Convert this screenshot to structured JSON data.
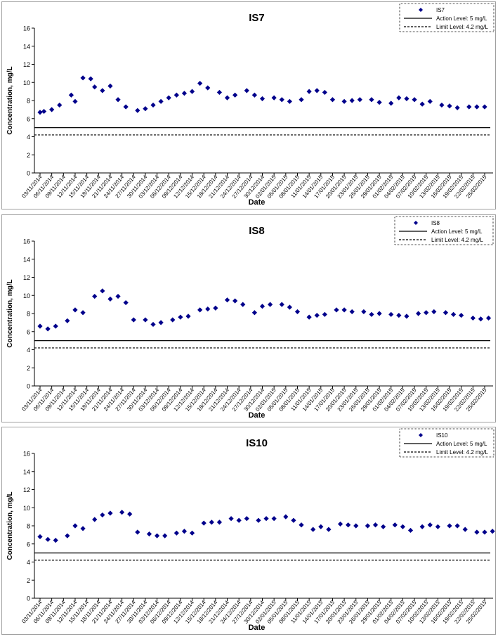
{
  "dates": [
    "03/11/2014",
    "06/11/2014",
    "09/11/2014",
    "12/11/2014",
    "15/11/2014",
    "18/11/2014",
    "21/11/2014",
    "24/11/2014",
    "27/11/2014",
    "30/11/2014",
    "03/12/2014",
    "06/12/2014",
    "09/12/2014",
    "12/12/2014",
    "15/12/2014",
    "18/12/2014",
    "21/12/2014",
    "24/12/2014",
    "27/12/2014",
    "30/12/2014",
    "02/01/2015",
    "05/01/2015",
    "08/01/2015",
    "11/01/2015",
    "14/01/2015",
    "17/01/2015",
    "20/01/2015",
    "23/01/2015",
    "26/01/2015",
    "29/01/2015",
    "01/02/2015",
    "04/02/2015",
    "07/02/2015",
    "10/02/2015",
    "13/02/2015",
    "16/02/2015",
    "19/02/2015",
    "22/02/2015",
    "25/02/2015"
  ],
  "colors": {
    "marker": "#00008B",
    "line": "#000000",
    "frame": "#a0a0a0"
  },
  "chart_data": [
    {
      "type": "scatter",
      "title": "IS7",
      "xlabel": "Date",
      "ylabel": "Concentration, mg/L",
      "ylim": [
        0,
        16
      ],
      "yticks": [
        0,
        2,
        4,
        6,
        8,
        10,
        12,
        14,
        16
      ],
      "legend_position": "top-right",
      "series": [
        {
          "name": "IS7",
          "x": [
            "03/11/2014",
            "04/11/2014",
            "06/11/2014",
            "08/11/2014",
            "11/11/2014",
            "12/11/2014",
            "14/11/2014",
            "16/11/2014",
            "17/11/2014",
            "19/11/2014",
            "21/11/2014",
            "23/11/2014",
            "25/11/2014",
            "28/11/2014",
            "30/11/2014",
            "02/12/2014",
            "04/12/2014",
            "06/12/2014",
            "08/12/2014",
            "10/12/2014",
            "12/12/2014",
            "14/12/2014",
            "16/12/2014",
            "19/12/2014",
            "21/12/2014",
            "23/12/2014",
            "26/12/2014",
            "28/12/2014",
            "30/12/2014",
            "02/01/2015",
            "04/01/2015",
            "06/01/2015",
            "09/01/2015",
            "11/01/2015",
            "13/01/2015",
            "15/01/2015",
            "17/01/2015",
            "20/01/2015",
            "22/01/2015",
            "24/01/2015",
            "27/01/2015",
            "29/01/2015",
            "01/02/2015",
            "03/02/2015",
            "05/02/2015",
            "07/02/2015",
            "09/02/2015",
            "11/02/2015",
            "14/02/2015",
            "16/02/2015",
            "18/02/2015",
            "21/02/2015",
            "23/02/2015",
            "25/02/2015"
          ],
          "y": [
            6.7,
            6.8,
            7.0,
            7.5,
            8.6,
            7.9,
            10.5,
            10.4,
            9.5,
            9.1,
            9.6,
            8.1,
            7.3,
            6.9,
            7.1,
            7.5,
            7.9,
            8.3,
            8.6,
            8.8,
            9.0,
            9.9,
            9.4,
            8.9,
            8.3,
            8.6,
            9.1,
            8.6,
            8.2,
            8.3,
            8.1,
            7.9,
            8.1,
            9.0,
            9.1,
            8.9,
            8.1,
            7.9,
            8.0,
            8.1,
            8.1,
            7.8,
            7.7,
            8.3,
            8.2,
            8.1,
            7.6,
            7.9,
            7.5,
            7.4,
            7.2,
            7.3,
            7.3,
            7.3
          ]
        },
        {
          "name": "Action Level: 5 mg/L",
          "value": 5
        },
        {
          "name": "Limit Level: 4.2 mg/L",
          "value": 4.2
        }
      ]
    },
    {
      "type": "scatter",
      "title": "IS8",
      "xlabel": "Date",
      "ylabel": "Concentration, mg/L",
      "ylim": [
        0,
        16
      ],
      "yticks": [
        0,
        2,
        4,
        6,
        8,
        10,
        12,
        14,
        16
      ],
      "legend_position": "top-right",
      "series": [
        {
          "name": "IS8",
          "x": [
            "03/11/2014",
            "05/11/2014",
            "07/11/2014",
            "10/11/2014",
            "12/11/2014",
            "14/11/2014",
            "17/11/2014",
            "19/11/2014",
            "21/11/2014",
            "23/11/2014",
            "25/11/2014",
            "27/11/2014",
            "30/11/2014",
            "02/12/2014",
            "04/12/2014",
            "07/12/2014",
            "09/12/2014",
            "11/12/2014",
            "14/12/2014",
            "16/12/2014",
            "18/12/2014",
            "21/12/2014",
            "23/12/2014",
            "25/12/2014",
            "28/12/2014",
            "30/12/2014",
            "01/01/2015",
            "04/01/2015",
            "06/01/2015",
            "08/01/2015",
            "11/01/2015",
            "13/01/2015",
            "15/01/2015",
            "18/01/2015",
            "20/01/2015",
            "22/01/2015",
            "25/01/2015",
            "27/01/2015",
            "29/01/2015",
            "01/02/2015",
            "03/02/2015",
            "05/02/2015",
            "08/02/2015",
            "10/02/2015",
            "12/02/2015",
            "15/02/2015",
            "17/02/2015",
            "19/02/2015",
            "22/02/2015",
            "24/02/2015",
            "26/02/2015"
          ],
          "y": [
            6.6,
            6.3,
            6.6,
            7.2,
            8.4,
            8.1,
            9.9,
            10.5,
            9.6,
            9.9,
            9.2,
            7.3,
            7.3,
            6.8,
            7.0,
            7.3,
            7.6,
            7.7,
            8.4,
            8.5,
            8.6,
            9.5,
            9.4,
            9.0,
            8.1,
            8.8,
            9.0,
            9.0,
            8.7,
            8.2,
            7.6,
            7.8,
            7.9,
            8.4,
            8.4,
            8.2,
            8.2,
            7.9,
            8.0,
            7.9,
            7.8,
            7.7,
            8.0,
            8.1,
            8.2,
            8.1,
            7.9,
            7.8,
            7.5,
            7.4,
            7.5
          ]
        },
        {
          "name": "Action Level: 5 mg/L",
          "value": 5
        },
        {
          "name": "Limit Level: 4.2 mg/L",
          "value": 4.2
        }
      ]
    },
    {
      "type": "scatter",
      "title": "IS10",
      "xlabel": "Date",
      "ylabel": "Concentration, mg/L",
      "ylim": [
        0,
        16
      ],
      "yticks": [
        0,
        2,
        4,
        6,
        8,
        10,
        12,
        14,
        16
      ],
      "legend_position": "top-right",
      "series": [
        {
          "name": "IS10",
          "x": [
            "03/11/2014",
            "05/11/2014",
            "07/11/2014",
            "10/11/2014",
            "12/11/2014",
            "14/11/2014",
            "17/11/2014",
            "19/11/2014",
            "21/11/2014",
            "24/11/2014",
            "26/11/2014",
            "28/11/2014",
            "01/12/2014",
            "03/12/2014",
            "05/12/2014",
            "08/12/2014",
            "10/12/2014",
            "12/12/2014",
            "15/12/2014",
            "17/12/2014",
            "19/12/2014",
            "22/12/2014",
            "24/12/2014",
            "26/12/2014",
            "29/12/2014",
            "31/12/2014",
            "02/01/2015",
            "05/01/2015",
            "07/01/2015",
            "09/01/2015",
            "12/01/2015",
            "14/01/2015",
            "16/01/2015",
            "19/01/2015",
            "21/01/2015",
            "23/01/2015",
            "26/01/2015",
            "28/01/2015",
            "30/01/2015",
            "02/02/2015",
            "04/02/2015",
            "06/02/2015",
            "09/02/2015",
            "11/02/2015",
            "13/02/2015",
            "16/02/2015",
            "18/02/2015",
            "20/02/2015",
            "23/02/2015",
            "25/02/2015",
            "27/02/2015"
          ],
          "y": [
            6.8,
            6.5,
            6.4,
            6.9,
            8.0,
            7.7,
            8.7,
            9.2,
            9.4,
            9.5,
            9.3,
            7.3,
            7.1,
            6.9,
            6.9,
            7.2,
            7.4,
            7.2,
            8.3,
            8.4,
            8.4,
            8.8,
            8.6,
            8.8,
            8.6,
            8.8,
            8.8,
            9.0,
            8.6,
            8.1,
            7.6,
            7.9,
            7.6,
            8.2,
            8.1,
            8.0,
            8.0,
            8.1,
            7.9,
            8.1,
            7.9,
            7.5,
            7.9,
            8.1,
            7.9,
            8.0,
            8.0,
            7.6,
            7.3,
            7.3,
            7.4
          ]
        },
        {
          "name": "Action Level: 5 mg/L",
          "value": 5
        },
        {
          "name": "Limit Level: 4.2 mg/L",
          "value": 4.2
        }
      ]
    }
  ]
}
